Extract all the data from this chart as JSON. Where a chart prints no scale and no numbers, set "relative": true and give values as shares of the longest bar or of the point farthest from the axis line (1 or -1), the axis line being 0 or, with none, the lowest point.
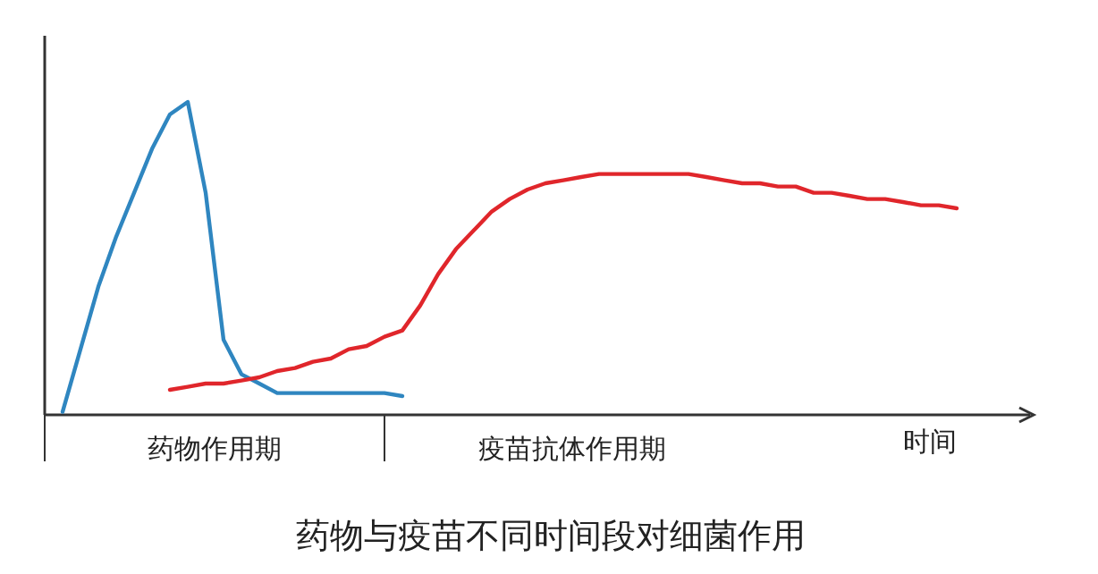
{
  "chart_data": {
    "type": "line",
    "relative": true,
    "title": "药物与疫苗不同时间段对细菌作用",
    "xlabel": "时间",
    "annotations": [
      "药物作用期",
      "疫苗抗体作用期"
    ],
    "marker": "none",
    "line_style": "solid",
    "categories": [
      null,
      null,
      null,
      null,
      null,
      null,
      null,
      null,
      null,
      null,
      null,
      null,
      null,
      null,
      null,
      null,
      null,
      null,
      null,
      null,
      null,
      null,
      null,
      null,
      null,
      null,
      null,
      null,
      null,
      null,
      null,
      null,
      null,
      null,
      null,
      null,
      null,
      null,
      null,
      null,
      null,
      null,
      null,
      null,
      null,
      null,
      null,
      null,
      null,
      null,
      null
    ],
    "series": [
      {
        "color": "#2f86c0",
        "values": [
          0.01,
          0.21,
          0.41,
          0.57,
          0.71,
          0.85,
          0.96,
          1.0,
          0.71,
          0.24,
          0.13,
          0.1,
          0.07,
          0.07,
          0.07,
          0.07,
          0.07,
          0.07,
          0.07,
          0.06,
          null,
          null,
          null,
          null,
          null,
          null,
          null,
          null,
          null,
          null,
          null,
          null,
          null,
          null,
          null,
          null,
          null,
          null,
          null,
          null,
          null,
          null,
          null,
          null,
          null,
          null,
          null,
          null,
          null,
          null,
          null
        ]
      },
      {
        "color": "#e0262b",
        "values": [
          null,
          null,
          null,
          null,
          null,
          null,
          0.08,
          0.09,
          0.1,
          0.1,
          0.11,
          0.12,
          0.14,
          0.15,
          0.17,
          0.18,
          0.21,
          0.22,
          0.25,
          0.27,
          0.35,
          0.45,
          0.53,
          0.59,
          0.65,
          0.69,
          0.72,
          0.74,
          0.75,
          0.76,
          0.77,
          0.77,
          0.77,
          0.77,
          0.77,
          0.77,
          0.76,
          0.75,
          0.74,
          0.74,
          0.73,
          0.73,
          0.71,
          0.71,
          0.7,
          0.69,
          0.69,
          0.68,
          0.67,
          0.67,
          0.66
        ]
      }
    ]
  }
}
